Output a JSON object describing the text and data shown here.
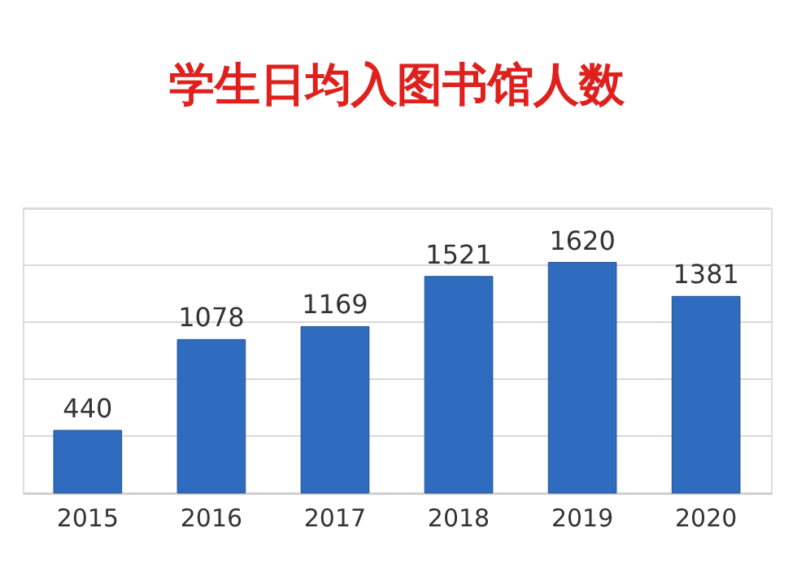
{
  "chart_data": {
    "type": "bar",
    "title": "学生日均入图书馆人数",
    "categories": [
      "2015",
      "2016",
      "2017",
      "2018",
      "2019",
      "2020"
    ],
    "values": [
      440,
      1078,
      1169,
      1521,
      1620,
      1381
    ],
    "color": "#2f6cbf",
    "ylim": [
      0,
      2000
    ],
    "yticks": [
      {
        "value": 0,
        "label": null
      },
      {
        "value": 400,
        "label": null
      },
      {
        "value": 800,
        "label": null
      },
      {
        "value": 1200,
        "label": null
      },
      {
        "value": 1600,
        "label": null
      },
      {
        "value": 2000,
        "label": null
      }
    ],
    "grid": "y",
    "tick_labels": "x",
    "data_labels": true
  }
}
